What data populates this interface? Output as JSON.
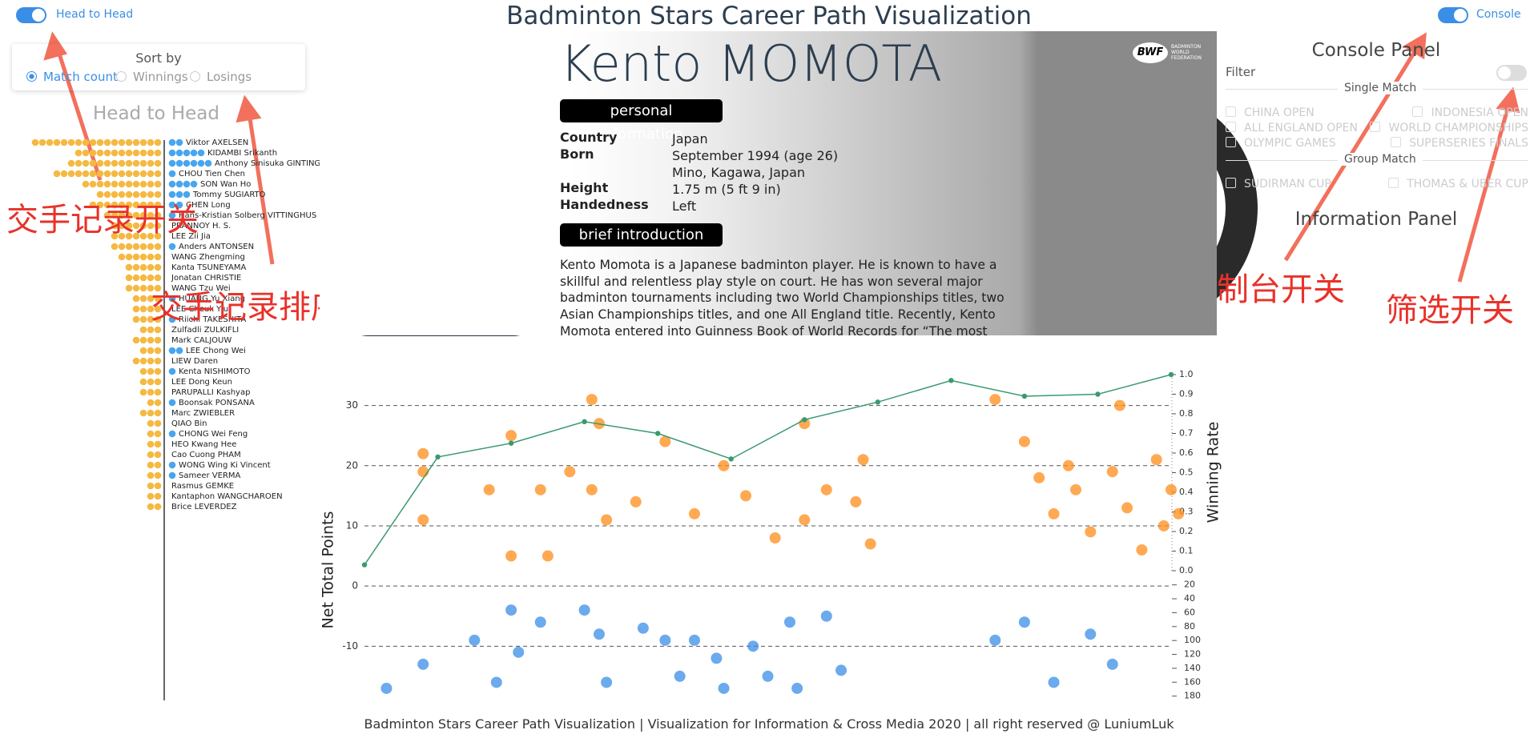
{
  "header": {
    "title": "Badminton Stars Career Path Visualization",
    "left_toggle": "Head to Head",
    "right_toggle": "Console"
  },
  "sort_panel": {
    "title": "Sort by",
    "options": [
      "Match count",
      "Winnings",
      "Losings"
    ],
    "selected": 0
  },
  "head_to_head": {
    "title": "Head to Head",
    "players": [
      {
        "name": "Viktor AXELSEN",
        "wins": 18,
        "losses": 2
      },
      {
        "name": "KIDAMBI Srikanth",
        "wins": 12,
        "losses": 5
      },
      {
        "name": "Anthony Sinisuka GINTING",
        "wins": 13,
        "losses": 6
      },
      {
        "name": "CHOU Tien Chen",
        "wins": 15,
        "losses": 1
      },
      {
        "name": "SON Wan Ho",
        "wins": 11,
        "losses": 4
      },
      {
        "name": "Tommy SUGIARTO",
        "wins": 9,
        "losses": 3
      },
      {
        "name": "CHEN Long",
        "wins": 10,
        "losses": 2
      },
      {
        "name": "Hans-Kristian Solberg VITTINGHUS",
        "wins": 8,
        "losses": 1
      },
      {
        "name": "PRANNOY H. S.",
        "wins": 7,
        "losses": 0
      },
      {
        "name": "LEE Zii Jia",
        "wins": 7,
        "losses": 0
      },
      {
        "name": "Anders ANTONSEN",
        "wins": 7,
        "losses": 1
      },
      {
        "name": "WANG Zhengming",
        "wins": 6,
        "losses": 0
      },
      {
        "name": "Kanta TSUNEYAMA",
        "wins": 5,
        "losses": 0
      },
      {
        "name": "Jonatan CHRISTIE",
        "wins": 5,
        "losses": 0
      },
      {
        "name": "WANG Tzu Wei",
        "wins": 5,
        "losses": 0
      },
      {
        "name": "HUANG Yu Xiang",
        "wins": 4,
        "losses": 1
      },
      {
        "name": "LEE Cheuk Yiu",
        "wins": 4,
        "losses": 0
      },
      {
        "name": "Riichi TAKESHITA",
        "wins": 4,
        "losses": 1
      },
      {
        "name": "Zulfadli ZULKIFLI",
        "wins": 3,
        "losses": 0
      },
      {
        "name": "Mark CALJOUW",
        "wins": 4,
        "losses": 0
      },
      {
        "name": "LEE Chong Wei",
        "wins": 3,
        "losses": 2
      },
      {
        "name": "LIEW Daren",
        "wins": 4,
        "losses": 0
      },
      {
        "name": "Kenta NISHIMOTO",
        "wins": 3,
        "losses": 1
      },
      {
        "name": "LEE Dong Keun",
        "wins": 3,
        "losses": 0
      },
      {
        "name": "PARUPALLI Kashyap",
        "wins": 3,
        "losses": 0
      },
      {
        "name": "Boonsak PONSANA",
        "wins": 2,
        "losses": 1
      },
      {
        "name": "Marc ZWIEBLER",
        "wins": 3,
        "losses": 0
      },
      {
        "name": "QIAO Bin",
        "wins": 2,
        "losses": 0
      },
      {
        "name": "CHONG Wei Feng",
        "wins": 2,
        "losses": 1
      },
      {
        "name": "HEO Kwang Hee",
        "wins": 2,
        "losses": 0
      },
      {
        "name": "Cao Cuong PHAM",
        "wins": 2,
        "losses": 0
      },
      {
        "name": "WONG Wing Ki Vincent",
        "wins": 2,
        "losses": 1
      },
      {
        "name": "Sameer VERMA",
        "wins": 2,
        "losses": 1
      },
      {
        "name": "Rasmus GEMKE",
        "wins": 2,
        "losses": 0
      },
      {
        "name": "Kantaphon WANGCHAROEN",
        "wins": 2,
        "losses": 0
      },
      {
        "name": "Brice LEVERDEZ",
        "wins": 2,
        "losses": 0
      }
    ]
  },
  "profile": {
    "name": "Kento MOMOTA",
    "personal_label": "personal information",
    "fields": [
      {
        "label": "Country",
        "lines": [
          "Japan"
        ]
      },
      {
        "label": "Born",
        "lines": [
          "September 1994 (age 26)",
          "Mino, Kagawa, Japan"
        ]
      },
      {
        "label": "Height",
        "lines": [
          "1.75 m (5 ft 9 in)"
        ]
      },
      {
        "label": "Handedness",
        "lines": [
          "Left"
        ]
      }
    ],
    "intro_label": "brief introduction",
    "intro": "Kento Momota is a Japanese badminton player. He is known to have a skillful and relentless play style on court. He has won several major badminton tournaments including two World Championships titles, two Asian Championships titles, and one All England title. Recently, Kento Momota entered into Guinness Book of World Records for “The most Badminton",
    "logo": "BWF",
    "logo_caption": [
      "BADMINTON",
      "WORLD",
      "FEDERATION"
    ]
  },
  "console": {
    "title": "Console Panel",
    "filter": "Filter",
    "single_match": "Single Match",
    "single_options": [
      "CHINA OPEN",
      "INDONESIA OPEN",
      "ALL ENGLAND OPEN",
      "WORLD CHAMPIONSHIPS",
      "OLYMPIC GAMES",
      "SUPERSERIES FINALS"
    ],
    "group_match": "Group Match",
    "group_options": [
      "SUDIRMAN CUP",
      "THOMAS & UBER CUP"
    ],
    "info_title": "Information Panel"
  },
  "annotations": [
    "交手记录开关",
    "交手记录排序",
    "控制台开关",
    "筛选开关"
  ],
  "chart_data": {
    "type": "scatter",
    "y_label": "Net Total Points",
    "y2_label": "Winning Rate",
    "xlim": [
      0,
      11
    ],
    "ylim": [
      -19,
      35
    ],
    "yticks": [
      -10,
      0,
      10,
      20,
      30
    ],
    "y2lim": [
      0,
      1
    ],
    "y2ticks": [
      {
        "value": 0,
        "label": "0.0"
      },
      0.1,
      0.2,
      0.3,
      0.4,
      0.5,
      0.6,
      0.7,
      0.8,
      0.9,
      {
        "value": 1,
        "label": "1.0"
      }
    ],
    "y3lim": [
      10,
      185
    ],
    "y3ticks": [
      20,
      40,
      60,
      80,
      100,
      120,
      140,
      160,
      180
    ],
    "grid": true,
    "series": [
      {
        "type": "scatter",
        "color": "#ff8c1a",
        "x": [
          0.8,
          0.8,
          0.8,
          1.7,
          2.0,
          2.0,
          2.4,
          2.5,
          2.8,
          3.1,
          3.2,
          3.1,
          3.3,
          3.7,
          4.1,
          4.5,
          4.9,
          5.2,
          5.6,
          6.0,
          6.0,
          6.3,
          6.7,
          6.8,
          6.9,
          9.0,
          9.2,
          9.4,
          9.6,
          9.9,
          10.2,
          10.4,
          10.6,
          10.8,
          10.9,
          11.0,
          8.6,
          10.3,
          11.1,
          9.7
        ],
        "values": [
          22,
          19,
          11,
          16,
          5,
          25,
          16,
          5,
          19,
          31,
          27,
          16,
          11,
          14,
          24,
          12,
          20,
          15,
          8,
          11,
          27,
          16,
          14,
          21,
          7,
          24,
          18,
          12,
          20,
          9,
          19,
          13,
          6,
          21,
          10,
          16,
          31,
          30,
          12,
          16
        ]
      },
      {
        "type": "scatter",
        "color": "#3a8ee6",
        "x": [
          0.3,
          0.8,
          1.5,
          1.8,
          2.0,
          2.1,
          2.4,
          3.0,
          3.2,
          3.3,
          3.8,
          4.1,
          4.3,
          4.5,
          4.8,
          4.9,
          5.3,
          5.5,
          5.8,
          5.9,
          6.3,
          6.5,
          8.6,
          9.0,
          9.4,
          9.9,
          10.2
        ],
        "values": [
          -17,
          -13,
          -9,
          -16,
          -4,
          -11,
          -6,
          -4,
          -8,
          -16,
          -7,
          -9,
          -15,
          -9,
          -12,
          -17,
          -10,
          -15,
          -6,
          -17,
          -5,
          -14,
          -9,
          -6,
          -16,
          -8,
          -13
        ]
      },
      {
        "type": "line",
        "axis": "y2",
        "color": "#3a9a6e",
        "x": [
          0,
          1,
          2,
          3,
          4,
          5,
          6,
          7,
          8,
          9,
          10,
          11
        ],
        "values": [
          0.03,
          0.58,
          0.65,
          0.76,
          0.7,
          0.57,
          0.77,
          0.86,
          0.97,
          0.89,
          0.9,
          1.0
        ]
      }
    ]
  },
  "footer": "Badminton Stars Career Path Visualization | Visualization for Information & Cross Media 2020 | all right reserved @ LuniumLuk"
}
